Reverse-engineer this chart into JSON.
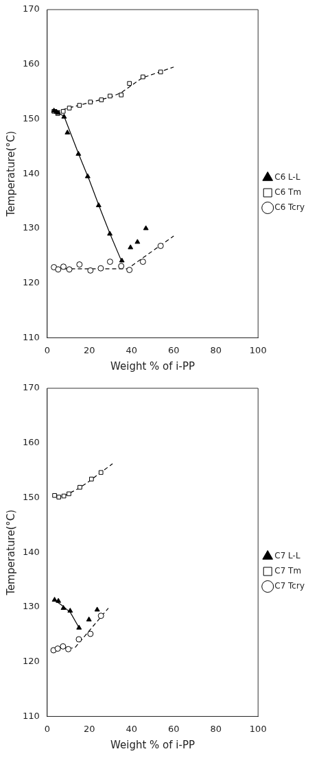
{
  "chart_data": [
    {
      "type": "scatter",
      "xlabel": "Weight % of i-PP",
      "ylabel": "Temperature(°C)",
      "xlim": [
        0,
        100
      ],
      "xticks": [
        0,
        20,
        40,
        60,
        80,
        100
      ],
      "ylim": [
        110,
        170
      ],
      "yticks": [
        110,
        120,
        130,
        140,
        150,
        160,
        170
      ],
      "grid": false,
      "legend": "right",
      "series": [
        {
          "name": "C6 L-L",
          "color": "#000000",
          "marker": "triangle",
          "x": [
            3.2,
            4.4,
            5.2,
            8.0,
            9.6,
            14.8,
            19.2,
            24.4,
            29.7,
            35.4,
            39.5,
            42.8,
            46.8
          ],
          "values": [
            151.5,
            151.3,
            151.1,
            150.4,
            147.5,
            143.6,
            139.5,
            134.2,
            129.0,
            124.1,
            126.5,
            127.5,
            130.0
          ]
        },
        {
          "name": "C6 Tm",
          "color": "#000000",
          "marker": "square",
          "x": [
            3.2,
            5.0,
            7.6,
            10.5,
            15.3,
            20.5,
            25.7,
            29.8,
            35.1,
            39.0,
            45.4,
            53.8
          ],
          "values": [
            151.4,
            151.0,
            151.4,
            152.0,
            152.5,
            153.1,
            153.5,
            154.2,
            154.4,
            156.5,
            157.7,
            158.6
          ]
        },
        {
          "name": "C6 Tcry",
          "color": "#000000",
          "marker": "circle",
          "x": [
            3.2,
            5.2,
            7.7,
            10.5,
            15.3,
            20.5,
            25.4,
            29.8,
            35.1,
            39.0,
            45.4,
            53.8
          ],
          "values": [
            122.9,
            122.5,
            123.0,
            122.5,
            123.4,
            122.3,
            122.7,
            123.9,
            123.1,
            122.4,
            123.9,
            126.8
          ]
        },
        {
          "type": "line",
          "color": "#000000",
          "line_style": "solid",
          "x": [
            3,
            8,
            15,
            20,
            25,
            30,
            35.5
          ],
          "values": [
            151.6,
            150.5,
            143.5,
            138.8,
            133.7,
            128.8,
            123.8
          ]
        },
        {
          "type": "line",
          "color": "#000000",
          "line_style": "dashed",
          "x": [
            3,
            10,
            20,
            30,
            35,
            45,
            60
          ],
          "values": [
            151.2,
            152.0,
            153.0,
            154.0,
            154.8,
            157.5,
            159.5
          ]
        },
        {
          "type": "line",
          "color": "#000000",
          "line_style": "dashed",
          "x": [
            3,
            38,
            60
          ],
          "values": [
            122.6,
            122.6,
            128.6
          ]
        }
      ]
    },
    {
      "type": "scatter",
      "xlabel": "Weight % of i-PP",
      "ylabel": "Temperature(°C)",
      "xlim": [
        0,
        100
      ],
      "xticks": [
        0,
        20,
        40,
        60,
        80,
        100
      ],
      "ylim": [
        110,
        170
      ],
      "yticks": [
        110,
        120,
        130,
        140,
        150,
        160,
        170
      ],
      "grid": false,
      "legend": "right",
      "series": [
        {
          "name": "C7 L-L",
          "color": "#000000",
          "marker": "triangle",
          "x": [
            3.5,
            5.3,
            7.7,
            10.9,
            15.1,
            19.8,
            23.7
          ],
          "values": [
            131.3,
            131.1,
            129.8,
            129.3,
            126.2,
            127.7,
            129.5
          ]
        },
        {
          "name": "C7 Tm",
          "color": "#000000",
          "marker": "square",
          "x": [
            3.5,
            5.5,
            7.9,
            10.3,
            15.5,
            21.0,
            25.5
          ],
          "values": [
            150.4,
            150.1,
            150.3,
            150.7,
            151.9,
            153.4,
            154.6
          ]
        },
        {
          "name": "C7 Tcry",
          "color": "#000000",
          "marker": "circle",
          "x": [
            3.0,
            5.0,
            7.5,
            10.0,
            15.0,
            20.5,
            25.5
          ],
          "values": [
            122.1,
            122.4,
            122.8,
            122.3,
            124.1,
            125.1,
            128.4
          ]
        },
        {
          "type": "line",
          "color": "#000000",
          "line_style": "solid",
          "x": [
            3,
            7,
            11,
            15
          ],
          "values": [
            131.4,
            130.3,
            129.0,
            126.3
          ]
        },
        {
          "type": "line",
          "color": "#000000",
          "line_style": "dashed",
          "x": [
            3,
            8,
            15,
            20,
            25,
            31
          ],
          "values": [
            150.2,
            150.3,
            151.7,
            153.0,
            154.5,
            156.2
          ]
        },
        {
          "type": "line",
          "color": "#000000",
          "line_style": "dashed",
          "x": [
            3,
            13,
            29
          ],
          "values": [
            122.5,
            122.5,
            129.8
          ]
        }
      ]
    }
  ]
}
